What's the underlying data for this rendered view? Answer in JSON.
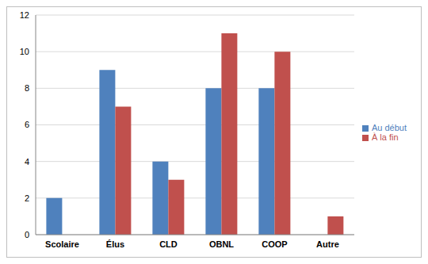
{
  "chart_data": {
    "type": "bar",
    "categories": [
      "Scolaire",
      "Élus",
      "CLD",
      "OBNL",
      "COOP",
      "Autre"
    ],
    "series": [
      {
        "name": "Au début",
        "color": "#4f81bd",
        "values": [
          2,
          9,
          4,
          8,
          8,
          0
        ]
      },
      {
        "name": "À la fin",
        "color": "#c0504d",
        "values": [
          0,
          7,
          3,
          11,
          10,
          1
        ]
      }
    ],
    "ylim": [
      0,
      12
    ],
    "yticks": [
      0,
      2,
      4,
      6,
      8,
      10,
      12
    ],
    "grid": true,
    "legend": "right"
  }
}
